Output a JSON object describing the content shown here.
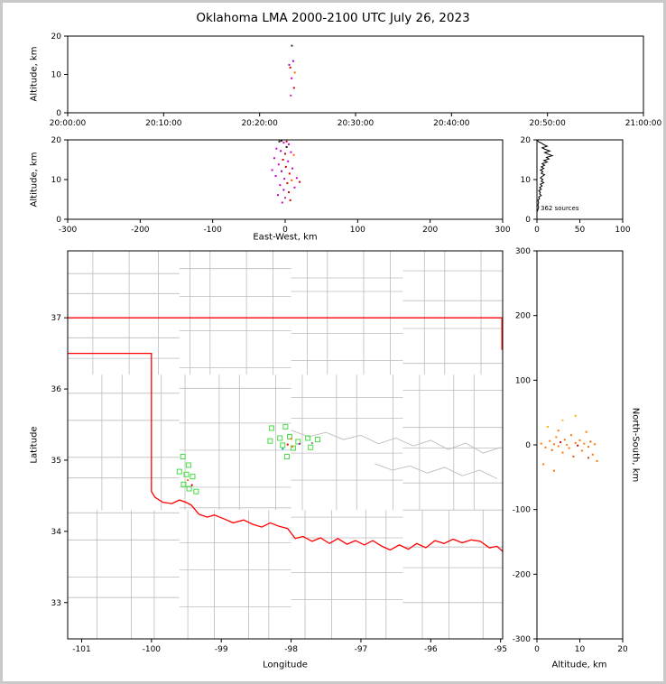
{
  "title": "Oklahoma LMA 2000-2100 UTC July 26, 2023",
  "chart_data": [
    {
      "id": "time-altitude",
      "type": "scatter",
      "ylabel": "Altitude, km",
      "x_range": [
        0,
        3600
      ],
      "y_range": [
        0,
        20
      ],
      "x_ticks": [
        0,
        600,
        1200,
        1800,
        2400,
        3000,
        3600
      ],
      "x_tick_labels": [
        "20:00:00",
        "20:10:00",
        "20:20:00",
        "20:30:00",
        "20:40:00",
        "20:50:00",
        "21:00:00"
      ],
      "y_ticks": [
        0,
        10,
        20
      ],
      "points": [
        [
          1385,
          12.5,
          "#cc00cc"
        ],
        [
          1392,
          11.8,
          "#d40000"
        ],
        [
          1400,
          9.0,
          "#cc00cc"
        ],
        [
          1410,
          13.5,
          "#8800cc"
        ],
        [
          1415,
          6.5,
          "#d40000"
        ],
        [
          1402,
          17.5,
          "#333333"
        ],
        [
          1395,
          4.5,
          "#cc3399"
        ],
        [
          1420,
          10.5,
          "#ff6600"
        ]
      ]
    },
    {
      "id": "ew-altitude",
      "type": "scatter",
      "xlabel": "East-West, km",
      "ylabel": "Altitude, km",
      "x_range": [
        -300,
        300
      ],
      "y_range": [
        0,
        20
      ],
      "x_ticks": [
        -300,
        -200,
        -100,
        0,
        100,
        200,
        300
      ],
      "y_ticks": [
        0,
        10,
        20
      ],
      "points": [
        [
          -8,
          19.6,
          "#111111"
        ],
        [
          -5,
          19.8,
          "#111111"
        ],
        [
          -2,
          19.3,
          "#cc00cc"
        ],
        [
          2,
          19.6,
          "#d40000"
        ],
        [
          5,
          18.9,
          "#cc00cc"
        ],
        [
          2,
          18.2,
          "#111111"
        ],
        [
          -12,
          17.8,
          "#cc00cc"
        ],
        [
          -6,
          17.2,
          "#b000b0"
        ],
        [
          0,
          16.5,
          "#d40000"
        ],
        [
          8,
          16.9,
          "#cc00cc"
        ],
        [
          12,
          16.2,
          "#ff6600"
        ],
        [
          -15,
          15.4,
          "#cc00cc"
        ],
        [
          -3,
          15.0,
          "#d40000"
        ],
        [
          4,
          14.6,
          "#b000e0"
        ],
        [
          -9,
          13.8,
          "#cc00cc"
        ],
        [
          1,
          13.2,
          "#d40000"
        ],
        [
          10,
          12.8,
          "#cc00cc"
        ],
        [
          -18,
          12.4,
          "#cc00cc"
        ],
        [
          -5,
          12.1,
          "#8800cc"
        ],
        [
          6,
          11.5,
          "#d40000"
        ],
        [
          -13,
          10.9,
          "#cc00cc"
        ],
        [
          16,
          10.4,
          "#cc00cc"
        ],
        [
          -1,
          10.2,
          "#cc00cc"
        ],
        [
          9,
          9.8,
          "#ff5500"
        ],
        [
          20,
          9.4,
          "#d40000"
        ],
        [
          3,
          9.1,
          "#d40000"
        ],
        [
          -7,
          8.6,
          "#cc00cc"
        ],
        [
          13,
          8.0,
          "#cc00cc"
        ],
        [
          -2,
          7.4,
          "#9900bb"
        ],
        [
          5,
          6.8,
          "#d40000"
        ],
        [
          -10,
          6.1,
          "#cc00cc"
        ],
        [
          0,
          5.4,
          "#cc2288"
        ],
        [
          7,
          4.8,
          "#d40000"
        ],
        [
          -4,
          4.2,
          "#cc00cc"
        ]
      ]
    },
    {
      "id": "alt-histogram",
      "type": "line",
      "annotation": "362 sources",
      "x_range": [
        0,
        100
      ],
      "y_range": [
        0,
        20
      ],
      "x_ticks": [
        0,
        50,
        100
      ],
      "y_ticks": [
        0,
        10,
        20
      ],
      "profile": [
        [
          0,
          20
        ],
        [
          2,
          19.5
        ],
        [
          5,
          19.2
        ],
        [
          8,
          18.8
        ],
        [
          12,
          18.4
        ],
        [
          6,
          18.0
        ],
        [
          10,
          17.6
        ],
        [
          15,
          17.2
        ],
        [
          9,
          16.8
        ],
        [
          13,
          16.4
        ],
        [
          18,
          16.0
        ],
        [
          11,
          15.6
        ],
        [
          14,
          15.2
        ],
        [
          8,
          14.8
        ],
        [
          12,
          14.4
        ],
        [
          6,
          14.0
        ],
        [
          9,
          13.6
        ],
        [
          5,
          13.2
        ],
        [
          8,
          12.8
        ],
        [
          4,
          12.4
        ],
        [
          7,
          12.0
        ],
        [
          5,
          11.6
        ],
        [
          9,
          11.2
        ],
        [
          6,
          10.8
        ],
        [
          4,
          10.4
        ],
        [
          7,
          10.0
        ],
        [
          5,
          9.6
        ],
        [
          8,
          9.2
        ],
        [
          4,
          8.8
        ],
        [
          6,
          8.4
        ],
        [
          3,
          8.0
        ],
        [
          5,
          7.6
        ],
        [
          2,
          7.2
        ],
        [
          4,
          6.8
        ],
        [
          3,
          6.4
        ],
        [
          5,
          6.0
        ],
        [
          2,
          5.6
        ],
        [
          3,
          5.2
        ],
        [
          1,
          4.8
        ],
        [
          2,
          4.2
        ],
        [
          1,
          3.6
        ],
        [
          2,
          3.0
        ],
        [
          1,
          2.4
        ],
        [
          0,
          1.8
        ]
      ]
    },
    {
      "id": "map",
      "type": "scatter",
      "xlabel": "Longitude",
      "ylabel": "Latitude",
      "x_range": [
        -101.2,
        -94.97
      ],
      "y_range": [
        32.49,
        37.94
      ],
      "x_ticks": [
        -101,
        -100,
        -99,
        -98,
        -97,
        -96,
        -95
      ],
      "y_ticks": [
        33,
        34,
        35,
        36,
        37
      ],
      "square_color": "#44dd44",
      "squares": [
        [
          -99.55,
          35.05
        ],
        [
          -99.47,
          34.93
        ],
        [
          -99.6,
          34.84
        ],
        [
          -99.5,
          34.8
        ],
        [
          -99.41,
          34.77
        ],
        [
          -99.54,
          34.66
        ],
        [
          -99.46,
          34.6
        ],
        [
          -99.36,
          34.56
        ],
        [
          -98.28,
          35.45
        ],
        [
          -98.08,
          35.47
        ],
        [
          -98.3,
          35.27
        ],
        [
          -98.16,
          35.31
        ],
        [
          -98.02,
          35.33
        ],
        [
          -97.9,
          35.26
        ],
        [
          -98.12,
          35.21
        ],
        [
          -97.97,
          35.17
        ],
        [
          -97.76,
          35.31
        ],
        [
          -97.62,
          35.29
        ],
        [
          -97.72,
          35.18
        ],
        [
          -98.06,
          35.05
        ]
      ],
      "points": [
        [
          -98.05,
          35.22,
          "#d40000"
        ],
        [
          -97.98,
          35.19,
          "#ff7700"
        ],
        [
          -98.12,
          35.16,
          "#00aaaa"
        ],
        [
          -97.88,
          35.23,
          "#cc00cc"
        ],
        [
          -98.0,
          35.3,
          "#ff7700"
        ],
        [
          -99.48,
          34.72,
          "#ff7700"
        ],
        [
          -99.42,
          34.65,
          "#d40000"
        ],
        [
          -97.7,
          35.24,
          "#888888"
        ]
      ],
      "state_border": [
        [
          [
            -101.2,
            37.0
          ],
          [
            -94.97,
            37.0
          ]
        ],
        [
          [
            -94.98,
            37.0
          ],
          [
            -94.98,
            36.55
          ]
        ],
        [
          [
            -101.2,
            36.5
          ],
          [
            -100.0,
            36.5
          ],
          [
            -100.0,
            34.56
          ],
          [
            -99.95,
            34.48
          ],
          [
            -99.84,
            34.41
          ],
          [
            -99.71,
            34.39
          ],
          [
            -99.6,
            34.44
          ],
          [
            -99.51,
            34.41
          ],
          [
            -99.43,
            34.37
          ],
          [
            -99.32,
            34.24
          ],
          [
            -99.2,
            34.2
          ],
          [
            -99.1,
            34.23
          ],
          [
            -98.97,
            34.18
          ],
          [
            -98.83,
            34.12
          ],
          [
            -98.68,
            34.16
          ],
          [
            -98.55,
            34.1
          ],
          [
            -98.42,
            34.06
          ],
          [
            -98.3,
            34.12
          ],
          [
            -98.17,
            34.07
          ],
          [
            -98.05,
            34.04
          ],
          [
            -97.94,
            33.9
          ],
          [
            -97.83,
            33.93
          ],
          [
            -97.7,
            33.86
          ],
          [
            -97.58,
            33.91
          ],
          [
            -97.45,
            33.83
          ],
          [
            -97.33,
            33.9
          ],
          [
            -97.2,
            33.82
          ],
          [
            -97.08,
            33.87
          ],
          [
            -96.95,
            33.81
          ],
          [
            -96.83,
            33.87
          ],
          [
            -96.7,
            33.79
          ],
          [
            -96.58,
            33.74
          ],
          [
            -96.45,
            33.81
          ],
          [
            -96.32,
            33.75
          ],
          [
            -96.2,
            33.83
          ],
          [
            -96.07,
            33.77
          ],
          [
            -95.94,
            33.87
          ],
          [
            -95.81,
            33.83
          ],
          [
            -95.68,
            33.89
          ],
          [
            -95.55,
            33.84
          ],
          [
            -95.42,
            33.88
          ],
          [
            -95.29,
            33.86
          ],
          [
            -95.16,
            33.77
          ],
          [
            -95.05,
            33.79
          ],
          [
            -94.97,
            33.72
          ]
        ]
      ],
      "county_grid": {
        "lon_lines": [
          -100.78,
          -100.36,
          -99.9,
          -99.52,
          -99.1,
          -98.68,
          -98.26,
          -97.84,
          -97.42,
          -97.0,
          -96.58,
          -96.16,
          -95.74,
          -95.32
        ],
        "lat_lines": [
          33.0,
          33.42,
          33.84,
          34.26,
          34.68,
          35.1,
          35.52,
          35.94,
          36.36,
          36.78,
          37.3,
          37.62
        ],
        "lat_breaks": [
          32.49,
          34.3,
          36.2,
          37.94
        ],
        "lon_breaks": [
          -101.2,
          -99.6,
          -98.0,
          -96.4,
          -94.97
        ],
        "jitter": [
          0,
          0.07,
          -0.06,
          0.04
        ]
      },
      "rivers": [
        [
          [
            -98.0,
            35.42
          ],
          [
            -97.75,
            35.33
          ],
          [
            -97.5,
            35.39
          ],
          [
            -97.25,
            35.29
          ],
          [
            -97.0,
            35.35
          ],
          [
            -96.75,
            35.23
          ],
          [
            -96.5,
            35.31
          ],
          [
            -96.25,
            35.2
          ],
          [
            -96.0,
            35.28
          ],
          [
            -95.75,
            35.15
          ],
          [
            -95.5,
            35.24
          ],
          [
            -95.25,
            35.1
          ],
          [
            -95.0,
            35.18
          ]
        ],
        [
          [
            -96.8,
            34.95
          ],
          [
            -96.55,
            34.86
          ],
          [
            -96.3,
            34.92
          ],
          [
            -96.05,
            34.82
          ],
          [
            -95.8,
            34.9
          ],
          [
            -95.55,
            34.78
          ],
          [
            -95.3,
            34.86
          ],
          [
            -95.05,
            34.74
          ]
        ]
      ]
    },
    {
      "id": "ns-altitude",
      "type": "scatter",
      "xlabel": "Altitude, km",
      "ylabel": "North-South, km",
      "x_range": [
        0,
        20
      ],
      "y_range": [
        -300,
        300
      ],
      "x_ticks": [
        0,
        10,
        20
      ],
      "y_ticks": [
        -300,
        -200,
        -100,
        0,
        100,
        200,
        300
      ],
      "points": [
        [
          1,
          2,
          "#ff7700"
        ],
        [
          2,
          -4,
          "#ff7700"
        ],
        [
          3,
          6,
          "#ff7700"
        ],
        [
          3.5,
          -8,
          "#e06000"
        ],
        [
          4,
          1,
          "#ff7700"
        ],
        [
          4.5,
          12,
          "#ff8800"
        ],
        [
          5,
          -2,
          "#ff7700"
        ],
        [
          5.5,
          4,
          "#d40000"
        ],
        [
          6,
          -12,
          "#ff7700"
        ],
        [
          6.5,
          8,
          "#ff7700"
        ],
        [
          7,
          0,
          "#ff8800"
        ],
        [
          7.5,
          -5,
          "#ff7700"
        ],
        [
          8,
          15,
          "#ff7700"
        ],
        [
          8.5,
          -18,
          "#e06000"
        ],
        [
          9,
          3,
          "#ff7700"
        ],
        [
          9.5,
          -1,
          "#d40000"
        ],
        [
          10,
          7,
          "#ff7700"
        ],
        [
          10.5,
          -9,
          "#ff7700"
        ],
        [
          11,
          2,
          "#ff8800"
        ],
        [
          11.5,
          20,
          "#ff7700"
        ],
        [
          12,
          -3,
          "#ff7700"
        ],
        [
          12.5,
          5,
          "#e06000"
        ],
        [
          13,
          -15,
          "#ff7700"
        ],
        [
          13.5,
          1,
          "#ff7700"
        ],
        [
          14,
          -25,
          "#ff7700"
        ],
        [
          2.5,
          28,
          "#ffaa00"
        ],
        [
          1.5,
          -30,
          "#ff7700"
        ],
        [
          6,
          38,
          "#ffbb33"
        ],
        [
          4,
          -40,
          "#ff7700"
        ],
        [
          9,
          45,
          "#ffaa00"
        ],
        [
          12,
          -20,
          "#cc4400"
        ],
        [
          5,
          22,
          "#ff7700"
        ]
      ]
    }
  ]
}
